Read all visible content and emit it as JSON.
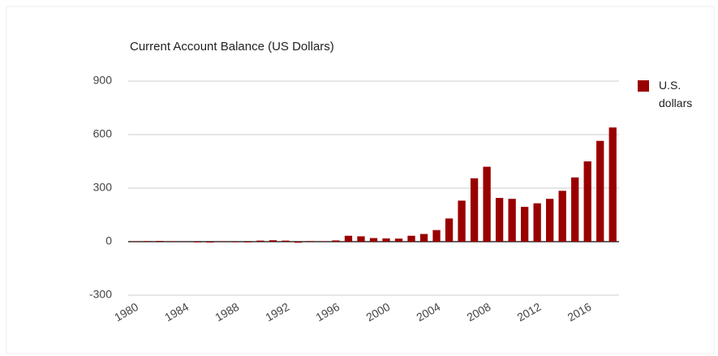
{
  "chart_data": {
    "type": "bar",
    "title": "Current Account Balance (US Dollars)",
    "categories": [
      "1980",
      null,
      null,
      null,
      "1984",
      null,
      null,
      null,
      "1988",
      null,
      null,
      null,
      "1992",
      null,
      null,
      null,
      "1996",
      null,
      null,
      null,
      "2000",
      null,
      null,
      null,
      "2004",
      null,
      null,
      null,
      "2008",
      null,
      null,
      null,
      "2012",
      null,
      null,
      null,
      "2016",
      null,
      null
    ],
    "series": [
      {
        "name": "U.S. dollars",
        "color": "#990000",
        "values": [
          2,
          3,
          4,
          2,
          1,
          -4,
          -5,
          2,
          -3,
          -4,
          6,
          8,
          6,
          -6,
          3,
          2,
          7,
          33,
          30,
          20,
          18,
          17,
          33,
          43,
          65,
          130,
          230,
          355,
          420,
          245,
          240,
          195,
          215,
          240,
          285,
          360,
          450,
          565,
          640
        ]
      }
    ],
    "ylim": [
      -300,
      900
    ],
    "yticks": [
      -300,
      0,
      300,
      600,
      900
    ],
    "grid": true,
    "legend": "right"
  }
}
